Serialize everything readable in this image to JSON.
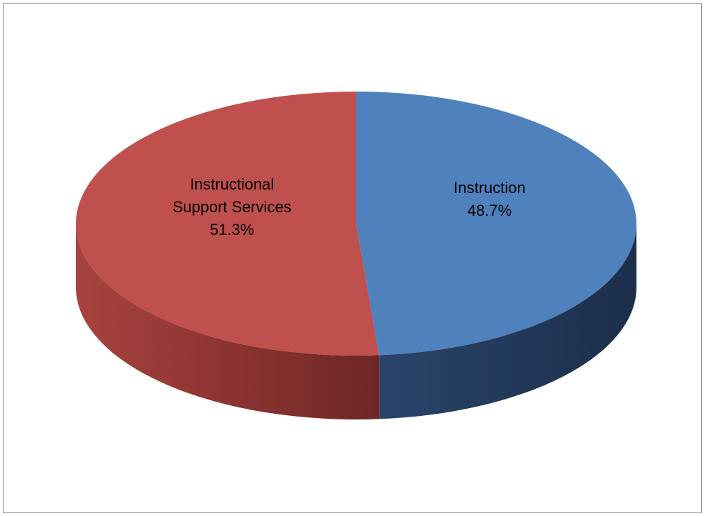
{
  "chart_data": {
    "type": "pie",
    "style": "3d",
    "slices": [
      {
        "label": "Instruction",
        "value": 48.7,
        "value_label": "48.7%",
        "color": "#4f81bd",
        "side_color": "#22385a"
      },
      {
        "label_lines": [
          "Instructional",
          "Support Services"
        ],
        "label": "Instructional Support Services",
        "value": 51.3,
        "value_label": "51.3%",
        "color": "#c0504d",
        "side_color": "#8a3431"
      }
    ],
    "legend": "none"
  }
}
